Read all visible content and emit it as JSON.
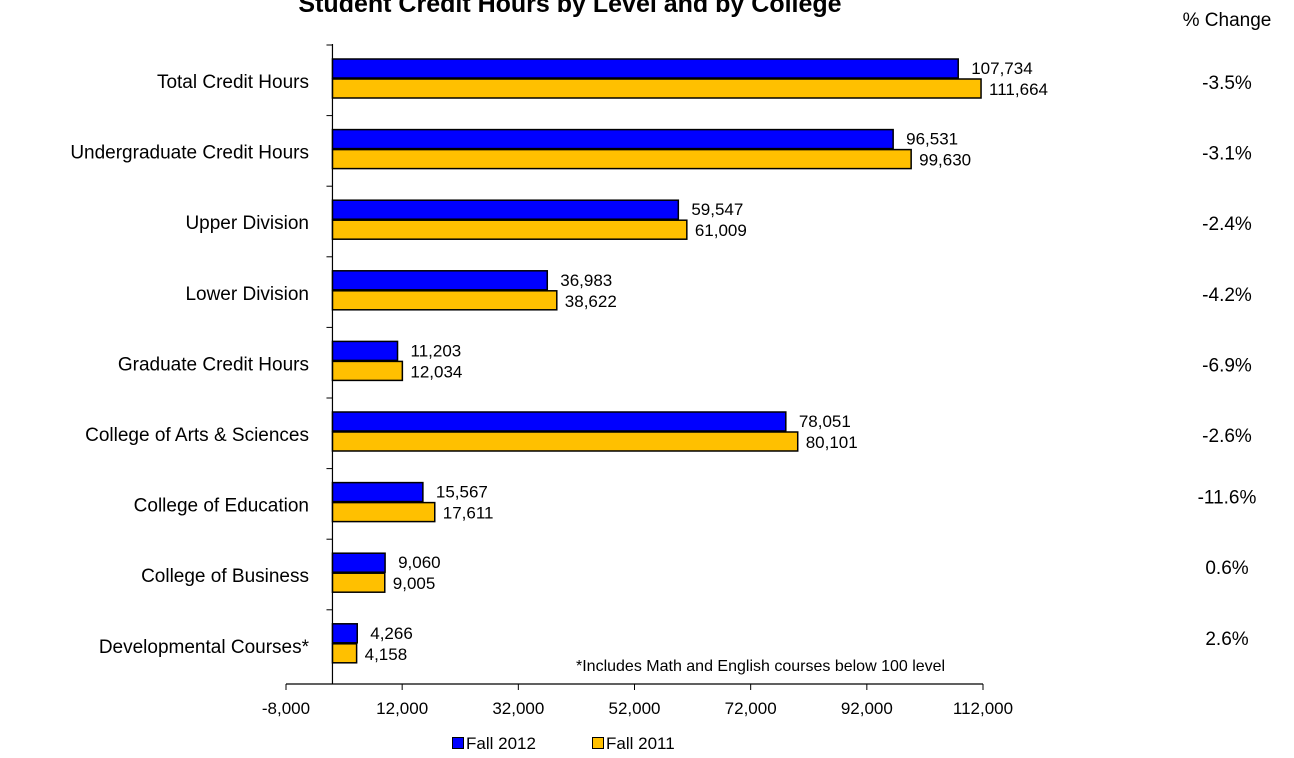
{
  "chart_data": {
    "type": "bar",
    "orientation": "horizontal",
    "title": "Student Credit Hours by Level and by College",
    "categories": [
      "Total Credit Hours",
      "Undergraduate Credit Hours",
      "Upper Division",
      "Lower Division",
      "Graduate Credit Hours",
      "College of Arts & Sciences",
      "College of Education",
      "College of Business",
      "Developmental Courses*"
    ],
    "series": [
      {
        "name": "Fall 2012",
        "color": "#0000ff",
        "values": [
          107734,
          96531,
          59547,
          36983,
          11203,
          78051,
          15567,
          9060,
          4266
        ],
        "labels": [
          "107,734",
          "96,531",
          "59,547",
          "36,983",
          "11,203",
          "78,051",
          "15,567",
          "9,060",
          "4,266"
        ]
      },
      {
        "name": "Fall 2011",
        "color": "#ffc000",
        "values": [
          111664,
          99630,
          61009,
          38622,
          12034,
          80101,
          17611,
          9005,
          4158
        ],
        "labels": [
          "111,664",
          "99,630",
          "61,009",
          "38,622",
          "12,034",
          "80,101",
          "17,611",
          "9,005",
          "4,158"
        ]
      }
    ],
    "xlim": [
      -8000,
      112000
    ],
    "x_ticks": [
      -8000,
      12000,
      32000,
      52000,
      72000,
      92000,
      112000
    ],
    "x_tick_labels": [
      "-8,000",
      "12,000",
      "32,000",
      "52,000",
      "72,000",
      "92,000",
      "112,000"
    ],
    "pct_change_header": "% Change",
    "pct_change": [
      "-3.5%",
      "-3.1%",
      "-2.4%",
      "-4.2%",
      "-6.9%",
      "-2.6%",
      "-11.6%",
      "0.6%",
      "2.6%"
    ],
    "footnote": "*Includes Math and English courses below 100 level",
    "legend_position": "bottom",
    "grid": false
  }
}
